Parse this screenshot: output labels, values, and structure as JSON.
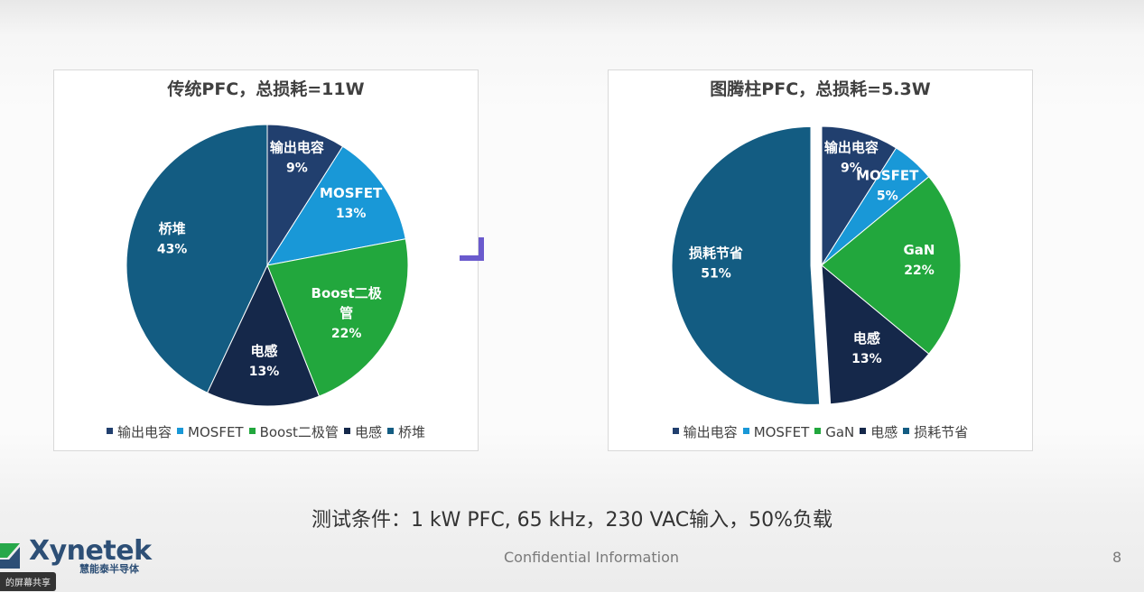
{
  "chart_data": [
    {
      "type": "pie",
      "title": "传统PFC，总损耗=11W",
      "categories": [
        "输出电容",
        "MOSFET",
        "Boost二极管",
        "电感",
        "桥堆"
      ],
      "values": [
        9,
        13,
        22,
        13,
        43
      ],
      "value_labels": [
        "9%",
        "13%",
        "22%",
        "13%",
        "43%"
      ],
      "slice_labels": [
        "输出电容",
        "MOSFET",
        "Boost二极\n管",
        "电感",
        "桥堆"
      ],
      "colors": [
        "#213f6e",
        "#1998d7",
        "#22a73d",
        "#15284a",
        "#135c82"
      ],
      "legend_placement": "bottom"
    },
    {
      "type": "pie",
      "title": "图腾柱PFC，总损耗=5.3W",
      "categories": [
        "输出电容",
        "MOSFET",
        "GaN",
        "电感",
        "损耗节省"
      ],
      "values": [
        9,
        5,
        22,
        13,
        51
      ],
      "value_labels": [
        "9%",
        "5%",
        "22%",
        "13%",
        "51%"
      ],
      "slice_labels": [
        "输出电容",
        "MOSFET",
        "GaN",
        "电感",
        "损耗节省"
      ],
      "colors": [
        "#213f6e",
        "#1998d7",
        "#22a73d",
        "#15284a",
        "#135c82"
      ],
      "exploded": "损耗节省",
      "legend_placement": "bottom"
    }
  ],
  "slide": {
    "test_conditions": "测试条件：1 kW PFC, 65 kHz，230 VAC输入，50%负载",
    "footer": "Confidential Information",
    "page_number": "8",
    "logo_text": "Xynetek",
    "logo_subtext": "慧能泰半导体",
    "share_label": "的屏幕共享"
  },
  "colors": {
    "accent": "#2d4f76"
  }
}
